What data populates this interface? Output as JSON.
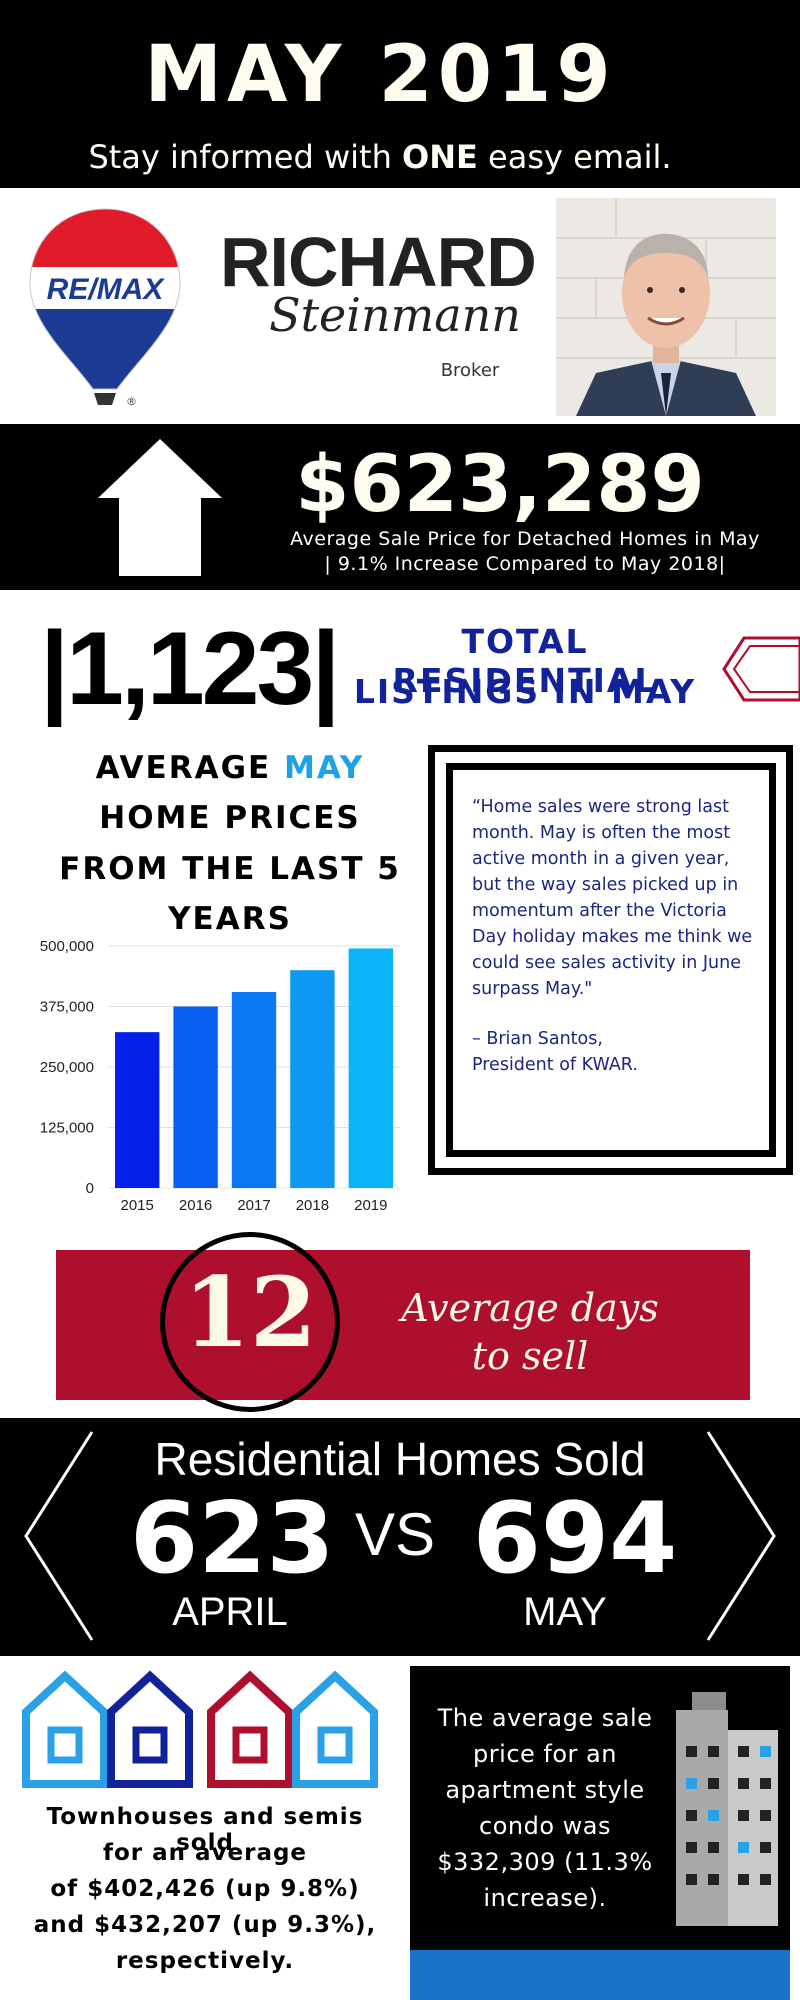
{
  "header": {
    "title": "MAY 2019",
    "subtitle_pre": "Stay informed with ",
    "subtitle_bold": "ONE",
    "subtitle_post": " easy email."
  },
  "brand": {
    "logo_text": "RE/MAX",
    "registered_mark": "®"
  },
  "agent": {
    "first_name": "RICHARD",
    "last_name": "Steinmann",
    "role": "Broker"
  },
  "price": {
    "value": "$623,289",
    "caption_line1": "Average Sale Price for Detached Homes in May",
    "caption_line2": "| 9.1% Increase Compared to May 2018|"
  },
  "listings": {
    "count": "|1,123|",
    "label_line1": "TOTAL RESIDENTIAL",
    "label_line2": "LISTINGS IN MAY"
  },
  "chart_heading": {
    "line1_pre": "AVERAGE ",
    "line1_accent": "MAY",
    "line2": "HOME PRICES",
    "line3": "FROM THE LAST 5",
    "line4": "YEARS"
  },
  "chart_data": {
    "type": "bar",
    "categories": [
      "2015",
      "2016",
      "2017",
      "2018",
      "2019"
    ],
    "values": [
      322000,
      375000,
      405000,
      450000,
      495000
    ],
    "colors": [
      "#0520ea",
      "#0a5ef0",
      "#0a78f0",
      "#0d98f3",
      "#0ab4f6"
    ],
    "ylim": [
      0,
      500000
    ],
    "yticks": [
      "0",
      "125,000",
      "250,000",
      "375,000",
      "500,000"
    ],
    "ytick_values": [
      0,
      125000,
      250000,
      375000,
      500000
    ],
    "grid": true,
    "title": "",
    "xlabel": "",
    "ylabel": ""
  },
  "quote": {
    "text": "“Home sales were strong last month. May is often the most active month in a given year, but the way sales picked up in momentum after the Victoria Day holiday makes me think we could see sales activity in June surpass May.\"",
    "author_line1": "– Brian Santos,",
    "author_line2": "President of KWAR."
  },
  "days": {
    "number": "12",
    "label_line1": "Average days",
    "label_line2": "to sell"
  },
  "sold": {
    "title": "Residential Homes Sold",
    "april_value": "623",
    "vs": "VS",
    "may_value": "694",
    "april_label": "APRIL",
    "may_label": "MAY"
  },
  "townhouses": {
    "line1": "Townhouses and semis sold",
    "line2": "for an average",
    "line3": "of $402,426 (up 9.8%)",
    "line4": "and $432,207 (up 9.3%),",
    "line5": "respectively."
  },
  "condo": {
    "text": "The average sale price for an apartment style condo was $332,309 (11.3% increase)."
  },
  "colors": {
    "black": "#000000",
    "cream": "#fffcf2",
    "navy": "#12229b",
    "accent_blue": "#1ca2e8",
    "crimson": "#ad0f2c",
    "condo_blue": "#1874c9"
  }
}
